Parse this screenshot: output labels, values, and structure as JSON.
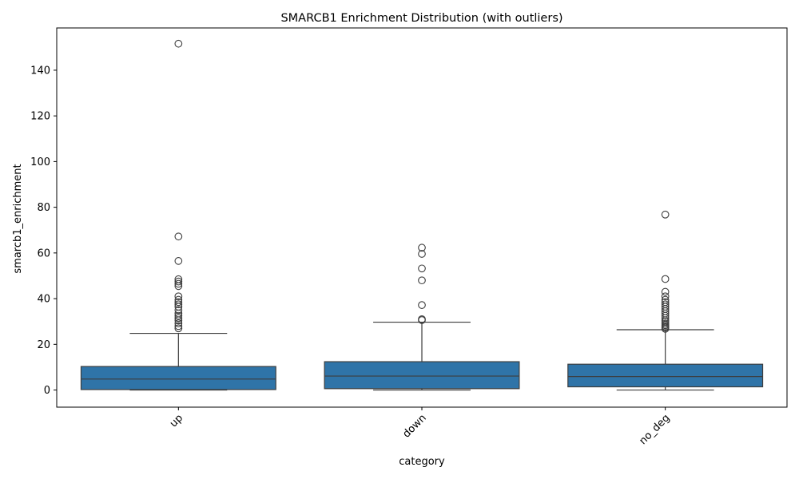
{
  "chart_data": {
    "type": "box",
    "title": "SMARCB1 Enrichment Distribution (with outliers)",
    "xlabel": "category",
    "ylabel": "smarcb1_enrichment",
    "ylim": [
      -7.5,
      158.5
    ],
    "yticks": [
      0,
      20,
      40,
      60,
      80,
      100,
      120,
      140
    ],
    "grid": false,
    "box_color": "#2f74a8",
    "categories": [
      "up",
      "down",
      "no_deg"
    ],
    "boxes": [
      {
        "category": "up",
        "whisker_low": 0.0,
        "q1": 0.2,
        "median": 4.8,
        "q3": 10.3,
        "whisker_high": 24.8,
        "outliers": [
          27.0,
          28.0,
          29.2,
          30.5,
          31.5,
          32.5,
          33.5,
          35.0,
          36.5,
          37.5,
          38.5,
          39.5,
          41.0,
          45.5,
          46.5,
          47.5,
          48.5,
          56.5,
          67.2,
          151.6
        ]
      },
      {
        "category": "down",
        "whisker_low": 0.0,
        "q1": 0.6,
        "median": 6.1,
        "q3": 12.4,
        "whisker_high": 29.7,
        "outliers": [
          30.6,
          31.0,
          37.2,
          48.0,
          53.2,
          59.6,
          62.3
        ]
      },
      {
        "category": "no_deg",
        "whisker_low": 0.0,
        "q1": 1.4,
        "median": 5.9,
        "q3": 11.3,
        "whisker_high": 26.4,
        "outliers": [
          26.8,
          27.3,
          27.8,
          28.4,
          29.0,
          29.8,
          30.5,
          31.5,
          32.5,
          33.5,
          34.5,
          35.5,
          36.5,
          37.5,
          38.5,
          39.5,
          41.0,
          43.0,
          48.6,
          76.8
        ]
      }
    ]
  }
}
